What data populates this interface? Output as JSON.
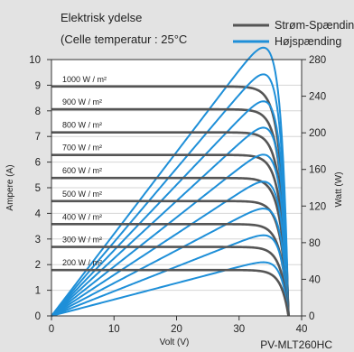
{
  "chart_data": {
    "type": "line",
    "title_line1": "Elektrisk ydelse",
    "title_line2": "(Celle temperatur : 25°C",
    "xlabel": "Volt (V)",
    "ylabel_left": "Ampere (A)",
    "ylabel_right": "Watt (W)",
    "model": "PV-MLT260HC",
    "xlim": [
      0,
      40
    ],
    "ylim_left": [
      0,
      10
    ],
    "ylim_right": [
      0,
      280
    ],
    "x_ticks": [
      "0",
      "10",
      "20",
      "30",
      "40"
    ],
    "y_left_ticks": [
      "0",
      "1",
      "2",
      "3",
      "4",
      "5",
      "6",
      "7",
      "8",
      "9",
      "10"
    ],
    "y_right_ticks": [
      "0",
      "40",
      "80",
      "120",
      "160",
      "200",
      "240",
      "280"
    ],
    "legend": [
      {
        "label": "Strøm-Spænding",
        "color": "#555555"
      },
      {
        "label": "Højspænding",
        "color": "#1e8fd8"
      }
    ],
    "colors": {
      "iv_curve": "#555555",
      "power_curve": "#1e8fd8",
      "plot_background": "#ffffff",
      "frame_background": "#e3e3e3",
      "grid": "#d6d6d6"
    },
    "iv_params": {
      "voc": 37.9,
      "curve_sharpness": 32
    },
    "series": [
      {
        "irradiance": "1000 W / m²",
        "isc": 8.95,
        "vmp": 31.5,
        "pmax": 258
      },
      {
        "irradiance": "900 W / m²",
        "isc": 8.06,
        "vmp": 31.4,
        "pmax": 233
      },
      {
        "irradiance": "800 W / m²",
        "isc": 7.16,
        "vmp": 31.3,
        "pmax": 207
      },
      {
        "irradiance": "700 W / m²",
        "isc": 6.28,
        "vmp": 31.2,
        "pmax": 181
      },
      {
        "irradiance": "600 W / m²",
        "isc": 5.38,
        "vmp": 31.1,
        "pmax": 155
      },
      {
        "irradiance": "500 W / m²",
        "isc": 4.48,
        "vmp": 31.0,
        "pmax": 129
      },
      {
        "irradiance": "400 W / m²",
        "isc": 3.58,
        "vmp": 30.9,
        "pmax": 103
      },
      {
        "irradiance": "300 W / m²",
        "isc": 2.69,
        "vmp": 30.8,
        "pmax": 77
      },
      {
        "irradiance": "200 W / m²",
        "isc": 1.79,
        "vmp": 30.6,
        "pmax": 51
      }
    ]
  }
}
